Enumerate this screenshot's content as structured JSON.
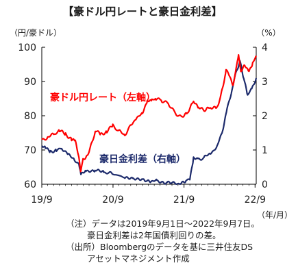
{
  "chart_data": {
    "type": "line",
    "title": "【豪ドル円レートと豪日金利差】",
    "left_axis": {
      "unit_label": "（円/豪ドル）",
      "ylim": [
        60,
        100
      ],
      "ticks": [
        "60",
        "70",
        "80",
        "90",
        "100"
      ]
    },
    "right_axis": {
      "unit_label": "（%）",
      "ylim": [
        0,
        4
      ],
      "ticks": [
        "0",
        "1",
        "2",
        "3",
        "4"
      ]
    },
    "x_axis": {
      "unit_label": "（年/月）",
      "tick_labels": [
        "19/9",
        "20/9",
        "21/9",
        "22/9"
      ]
    },
    "grid": false,
    "colors": {
      "fx": "#ff0000",
      "spread": "#1c2a6b",
      "axis": "#000000"
    },
    "series": [
      {
        "name": "豪ドル円レート（左軸）",
        "axis": "left",
        "color": "#ff0000",
        "x": [
          "2019-09-01",
          "2019-10-01",
          "2019-11-01",
          "2019-12-01",
          "2020-01-01",
          "2020-02-01",
          "2020-02-20",
          "2020-03-10",
          "2020-03-19",
          "2020-03-31",
          "2020-04-15",
          "2020-05-01",
          "2020-06-05",
          "2020-06-30",
          "2020-07-31",
          "2020-08-31",
          "2020-09-30",
          "2020-10-31",
          "2020-11-30",
          "2020-12-31",
          "2021-01-31",
          "2021-02-25",
          "2021-03-20",
          "2021-04-10",
          "2021-05-10",
          "2021-06-15",
          "2021-07-15",
          "2021-08-20",
          "2021-09-15",
          "2021-10-20",
          "2021-11-15",
          "2021-12-20",
          "2022-01-15",
          "2022-02-15",
          "2022-03-10",
          "2022-04-05",
          "2022-04-20",
          "2022-05-12",
          "2022-06-08",
          "2022-06-20",
          "2022-07-10",
          "2022-08-01",
          "2022-08-20",
          "2022-09-07"
        ],
        "values": [
          72.8,
          73.8,
          74.5,
          75.5,
          74.8,
          73.0,
          72.5,
          67.5,
          63.5,
          67.5,
          68.0,
          69.5,
          75.5,
          74.5,
          75.5,
          77.0,
          75.5,
          74.5,
          77.0,
          79.5,
          80.5,
          84.5,
          84.5,
          85.0,
          84.5,
          83.5,
          81.0,
          79.5,
          80.5,
          84.5,
          82.5,
          81.5,
          82.5,
          82.0,
          86.0,
          93.0,
          92.0,
          89.0,
          97.5,
          93.0,
          94.5,
          93.0,
          95.5,
          97.5
        ]
      },
      {
        "name": "豪日金利差（右軸）",
        "axis": "right",
        "color": "#1c2a6b",
        "x": [
          "2019-09-01",
          "2019-09-20",
          "2019-10-15",
          "2019-11-15",
          "2019-12-15",
          "2020-01-15",
          "2020-02-15",
          "2020-03-10",
          "2020-03-20",
          "2020-04-15",
          "2020-06-01",
          "2020-07-15",
          "2020-09-01",
          "2020-11-01",
          "2020-12-15",
          "2021-01-31",
          "2021-02-20",
          "2021-03-15",
          "2021-04-15",
          "2021-06-01",
          "2021-07-15",
          "2021-08-15",
          "2021-09-10",
          "2021-10-01",
          "2021-10-20",
          "2021-11-15",
          "2021-12-15",
          "2022-01-15",
          "2022-02-15",
          "2022-03-15",
          "2022-04-10",
          "2022-05-05",
          "2022-05-20",
          "2022-06-15",
          "2022-07-05",
          "2022-07-25",
          "2022-08-15",
          "2022-09-07"
        ],
        "values": [
          1.1,
          1.05,
          0.95,
          1.0,
          1.05,
          0.85,
          0.75,
          0.55,
          0.3,
          0.4,
          0.4,
          0.35,
          0.3,
          0.2,
          0.15,
          0.15,
          0.12,
          0.1,
          0.1,
          0.05,
          0.02,
          0.03,
          0.1,
          0.12,
          0.75,
          0.72,
          0.78,
          0.92,
          1.05,
          1.5,
          2.2,
          2.75,
          3.15,
          3.6,
          3.1,
          2.6,
          2.8,
          3.1
        ]
      }
    ]
  },
  "series_labels": {
    "fx": "豪ドル円レート（左軸）",
    "spread": "豪日金利差（右軸）"
  },
  "notes": [
    "（注）データは2019年9月1日～2022年9月7日。",
    "豪日金利差は2年国債利回りの差。",
    "（出所）Bloombergのデータを基に三井住友DS",
    "アセットマネジメント作成"
  ]
}
